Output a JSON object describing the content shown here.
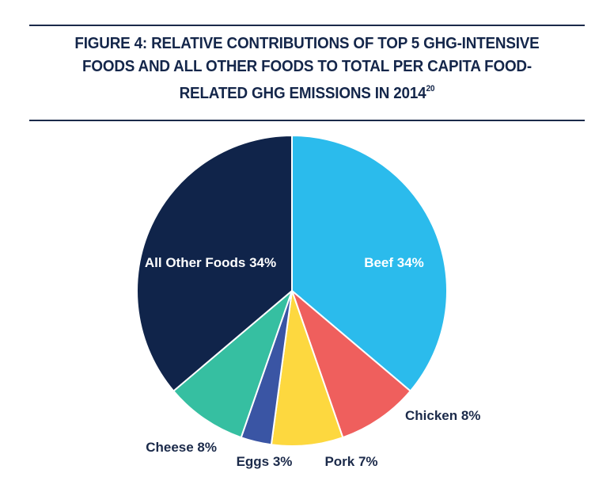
{
  "figure": {
    "title_main": "FIGURE 4: RELATIVE CONTRIBUTIONS OF TOP 5 GHG-INTENSIVE FOODS AND ALL OTHER FOODS TO TOTAL PER CAPITA FOOD-RELATED GHG EMISSIONS IN 2014",
    "title_superscript": "20"
  },
  "chart_data": {
    "type": "pie",
    "title": "FIGURE 4: RELATIVE CONTRIBUTIONS OF TOP 5 GHG-INTENSIVE FOODS AND ALL OTHER FOODS TO TOTAL PER CAPITA FOOD-RELATED GHG EMISSIONS IN 2014",
    "start": "12 o'clock, clockwise",
    "slices": [
      {
        "label": "Beef",
        "value": 34,
        "display": "Beef 34%",
        "color": "#2bbbec",
        "label_position": "inside"
      },
      {
        "label": "Chicken",
        "value": 8,
        "display": "Chicken 8%",
        "color": "#ef5f5d",
        "label_position": "outside"
      },
      {
        "label": "Pork",
        "value": 7,
        "display": "Pork 7%",
        "color": "#fdd83f",
        "label_position": "outside"
      },
      {
        "label": "Eggs",
        "value": 3,
        "display": "Eggs 3%",
        "color": "#3a55a4",
        "label_position": "outside"
      },
      {
        "label": "Cheese",
        "value": 8,
        "display": "Cheese 8%",
        "color": "#36bfa1",
        "label_position": "outside"
      },
      {
        "label": "All Other Foods",
        "value": 34,
        "display": "All Other Foods 34%",
        "color": "#10244a",
        "label_position": "inside"
      }
    ]
  }
}
